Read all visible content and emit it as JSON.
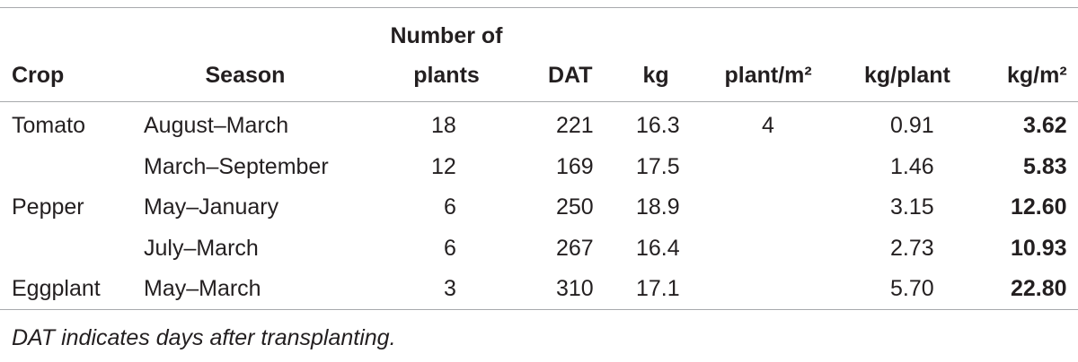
{
  "table": {
    "headers": [
      "Crop",
      "Season",
      "Number of plants",
      "DAT",
      "kg",
      "plant/m²",
      "kg/plant",
      "kg/m²"
    ],
    "rows": [
      [
        "Tomato",
        "August–March",
        "18",
        "221",
        "16.3",
        "4",
        "0.91",
        "3.62"
      ],
      [
        null,
        "March–September",
        "12",
        "169",
        "17.5",
        null,
        "1.46",
        "5.83"
      ],
      [
        "Pepper",
        "May–January",
        "6",
        "250",
        "18.9",
        null,
        "3.15",
        "12.60"
      ],
      [
        null,
        "July–March",
        "6",
        "267",
        "16.4",
        null,
        "2.73",
        "10.93"
      ],
      [
        "Eggplant",
        "May–March",
        "3",
        "310",
        "17.1",
        null,
        "5.70",
        "22.80"
      ]
    ],
    "footnote": "DAT indicates days after transplanting."
  }
}
